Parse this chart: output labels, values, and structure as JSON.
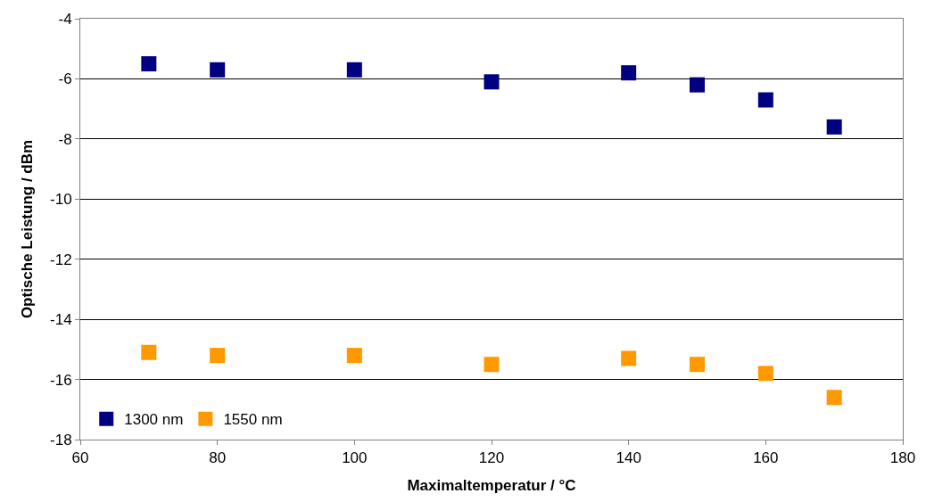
{
  "chart_data": {
    "type": "scatter",
    "xlabel": "Maximaltemperatur / °C",
    "ylabel": "Optische Leistung / dBm",
    "x": [
      70,
      80,
      100,
      120,
      140,
      150,
      160,
      170
    ],
    "series": [
      {
        "name": "1300 nm",
        "color": "#000080",
        "values": [
          -5.5,
          -5.7,
          -5.7,
          -6.1,
          -5.8,
          -6.2,
          -6.7,
          -7.6
        ]
      },
      {
        "name": "1550 nm",
        "color": "#ff9900",
        "values": [
          -15.1,
          -15.2,
          -15.2,
          -15.5,
          -15.3,
          -15.5,
          -15.8,
          -16.6
        ]
      }
    ],
    "xlim": [
      60,
      180
    ],
    "xticks": [
      60,
      80,
      100,
      120,
      140,
      160,
      180
    ],
    "ylim": [
      -18,
      -4
    ],
    "yticks": [
      -18,
      -16,
      -14,
      -12,
      -10,
      -8,
      -6,
      -4
    ],
    "grid": "y",
    "legend": "bottom left",
    "marker": "square"
  }
}
